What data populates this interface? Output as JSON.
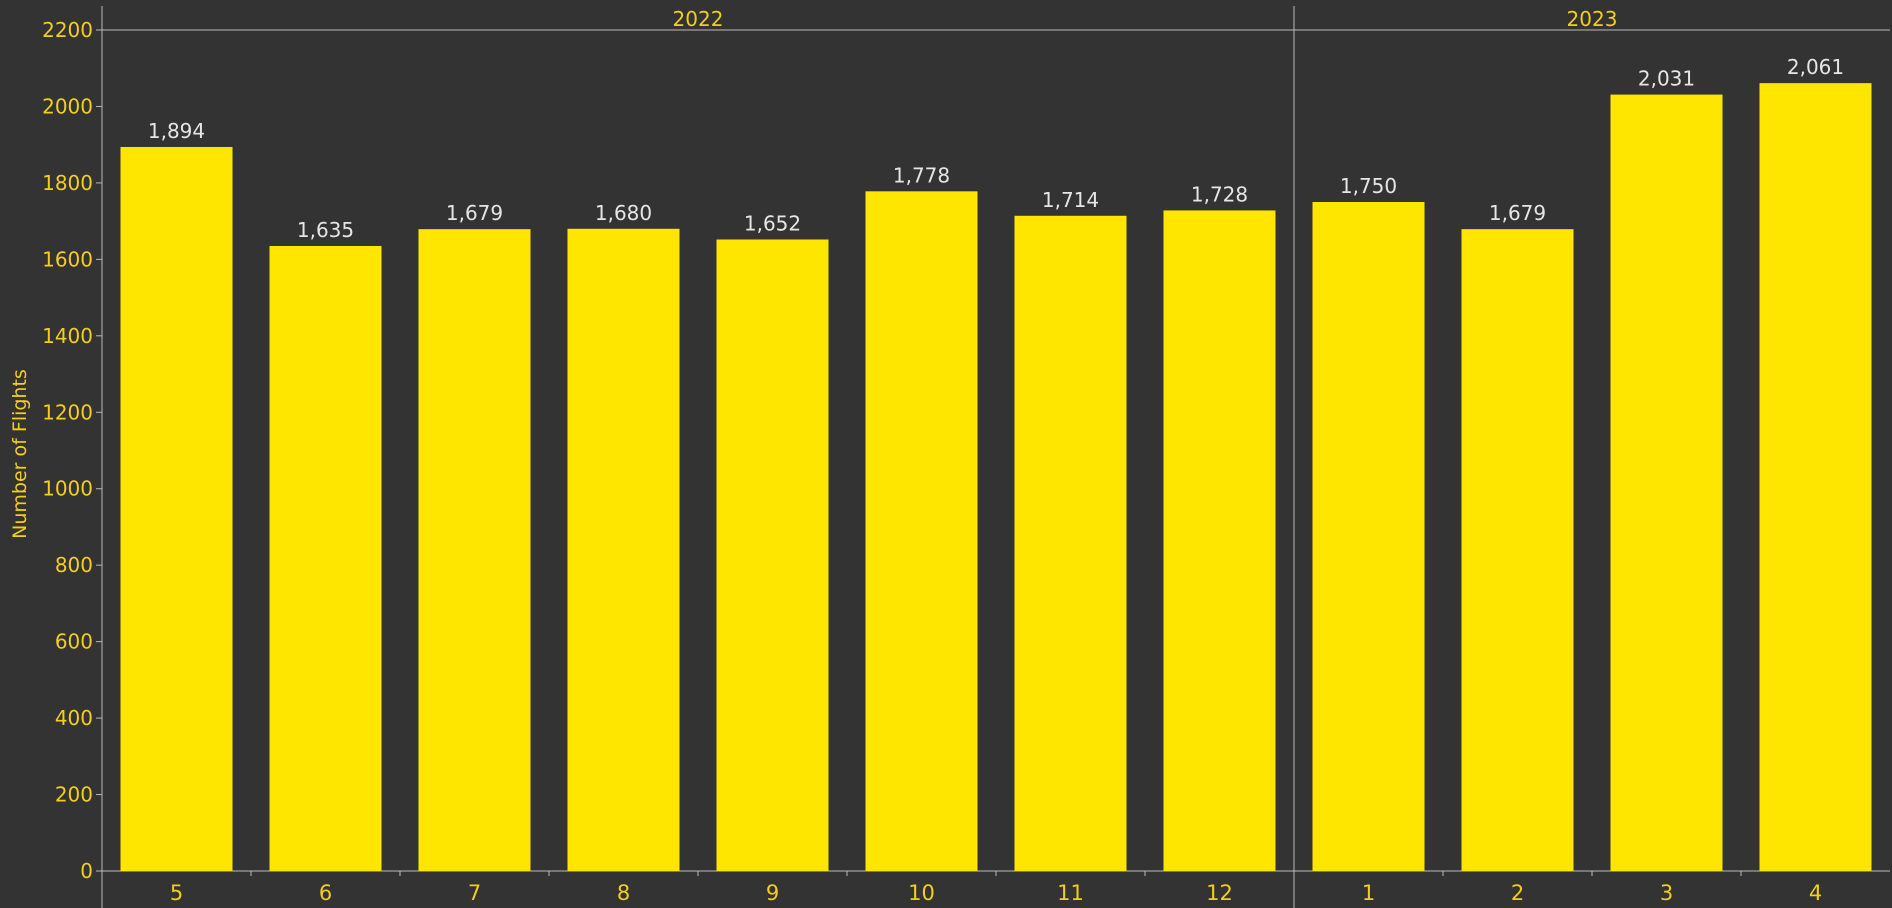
{
  "chart_data": {
    "type": "bar",
    "ylabel": "Number of Flights",
    "ylim": [
      0,
      2200
    ],
    "yticks": [
      0,
      200,
      400,
      600,
      800,
      1000,
      1200,
      1400,
      1600,
      1800,
      2000,
      2200
    ],
    "groups": [
      {
        "label": "2022",
        "categories": [
          "5",
          "6",
          "7",
          "8",
          "9",
          "10",
          "11",
          "12"
        ],
        "values": [
          1894,
          1635,
          1679,
          1680,
          1652,
          1778,
          1714,
          1728
        ]
      },
      {
        "label": "2023",
        "categories": [
          "1",
          "2",
          "3",
          "4"
        ],
        "values": [
          1750,
          1679,
          2031,
          2061
        ]
      }
    ],
    "data_labels": [
      "1,894",
      "1,635",
      "1,679",
      "1,680",
      "1,652",
      "1,778",
      "1,714",
      "1,728",
      "1,750",
      "1,679",
      "2,031",
      "2,061"
    ],
    "grid": false,
    "colors": {
      "background": "#333333",
      "bar": "#ffe600",
      "axis_text": "#f2cf1d",
      "value_label": "#e6e6e6",
      "axis_line": "#bbbbbb"
    }
  }
}
